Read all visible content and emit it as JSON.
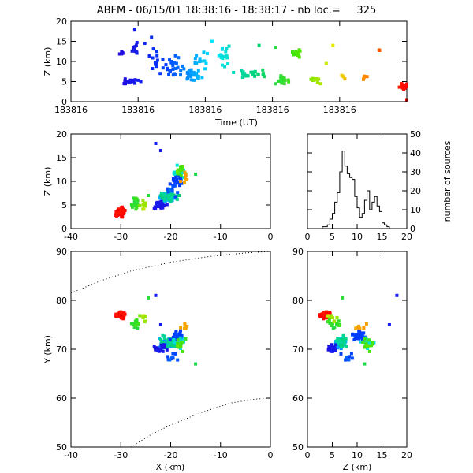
{
  "title": "ABFM - 06/15/01 18:38:16 - 18:38:17 - nb loc.=     325",
  "chart_data": [
    {
      "id": "time-height",
      "type": "scatter",
      "xlabel": "Time (UT)",
      "ylabel": "Z (km)",
      "xlim": [
        0,
        1
      ],
      "ylim": [
        0,
        20
      ],
      "xticks": [
        {
          "v": 0.0,
          "label": "183816"
        },
        {
          "v": 0.2,
          "label": "183816"
        },
        {
          "v": 0.4,
          "label": "183816"
        },
        {
          "v": 0.6,
          "label": "183816"
        },
        {
          "v": 0.8,
          "label": "183816"
        },
        {
          "v": 1.0,
          "label": ""
        }
      ],
      "yticks": [
        0,
        5,
        10,
        15,
        20
      ],
      "clusters": [
        {
          "t": 0.15,
          "z": 12.0,
          "sx": 0.012,
          "sz": 0.4,
          "n": 6
        },
        {
          "t": 0.18,
          "z": 5.0,
          "sx": 0.035,
          "sz": 0.5,
          "n": 22
        },
        {
          "t": 0.19,
          "z": 13.0,
          "sx": 0.012,
          "sz": 2.0,
          "n": 10
        },
        {
          "t": 0.25,
          "z": 10.0,
          "sx": 0.015,
          "sz": 2.5,
          "n": 12
        },
        {
          "t": 0.3,
          "z": 9.0,
          "sx": 0.02,
          "sz": 2.0,
          "n": 25
        },
        {
          "t": 0.36,
          "z": 6.5,
          "sx": 0.03,
          "sz": 1.2,
          "n": 30
        },
        {
          "t": 0.38,
          "z": 10.5,
          "sx": 0.02,
          "sz": 2.0,
          "n": 14
        },
        {
          "t": 0.46,
          "z": 12.0,
          "sx": 0.02,
          "sz": 2.0,
          "n": 16
        },
        {
          "t": 0.53,
          "z": 7.0,
          "sx": 0.035,
          "sz": 0.8,
          "n": 25
        },
        {
          "t": 0.63,
          "z": 5.5,
          "sx": 0.02,
          "sz": 1.0,
          "n": 18
        },
        {
          "t": 0.67,
          "z": 12.0,
          "sx": 0.012,
          "sz": 1.0,
          "n": 12
        },
        {
          "t": 0.73,
          "z": 5.5,
          "sx": 0.015,
          "sz": 0.7,
          "n": 12
        },
        {
          "t": 0.81,
          "z": 6.2,
          "sx": 0.01,
          "sz": 0.4,
          "n": 4
        },
        {
          "t": 0.88,
          "z": 6.0,
          "sx": 0.015,
          "sz": 0.5,
          "n": 5
        },
        {
          "t": 0.92,
          "z": 13.0,
          "sx": 0.004,
          "sz": 0.3,
          "n": 2
        },
        {
          "t": 0.99,
          "z": 3.8,
          "sx": 0.008,
          "sz": 0.7,
          "n": 35
        }
      ],
      "singles": [
        {
          "t": 0.19,
          "z": 18.0
        },
        {
          "t": 0.24,
          "z": 16.0
        },
        {
          "t": 0.22,
          "z": 14.5
        },
        {
          "t": 0.42,
          "z": 15.0
        },
        {
          "t": 0.56,
          "z": 14.0
        },
        {
          "t": 0.61,
          "z": 13.5
        },
        {
          "t": 0.78,
          "z": 14.0
        },
        {
          "t": 0.76,
          "z": 9.5
        },
        {
          "t": 1.0,
          "z": 0.5
        }
      ]
    },
    {
      "id": "x-z",
      "type": "scatter",
      "xlabel": "",
      "ylabel": "Z (km)",
      "xlim": [
        -40,
        0
      ],
      "ylim": [
        0,
        20
      ],
      "xticks": [
        -40,
        -30,
        -20,
        -10,
        0
      ],
      "yticks": [
        0,
        5,
        10,
        15,
        20
      ]
    },
    {
      "id": "histogram",
      "type": "bar",
      "xlabel": "",
      "ylabel": "number of sources",
      "xlim": [
        0,
        20
      ],
      "ylim": [
        0,
        50
      ],
      "xticks": [
        0,
        5,
        10,
        15,
        20
      ],
      "yticks": [
        0,
        10,
        20,
        30,
        40,
        50
      ],
      "bin_width": 0.5,
      "bin_start": 0,
      "values": [
        0,
        0,
        0,
        0,
        0,
        0,
        1,
        1,
        2,
        5,
        8,
        14,
        19,
        30,
        41,
        33,
        29,
        27,
        26,
        17,
        11,
        6,
        8,
        15,
        20,
        10,
        14,
        17,
        12,
        9,
        3,
        2,
        1,
        0,
        0,
        0,
        0,
        0,
        0,
        0
      ]
    },
    {
      "id": "x-y",
      "type": "scatter",
      "xlabel": "X (km)",
      "ylabel": "Y (km)",
      "xlim": [
        -40,
        0
      ],
      "ylim": [
        50,
        90
      ],
      "xticks": [
        -40,
        -30,
        -20,
        -10,
        0
      ],
      "yticks": [
        50,
        60,
        70,
        80,
        90
      ]
    },
    {
      "id": "z-y",
      "type": "scatter",
      "xlabel": "Z (km)",
      "ylabel": "",
      "xlim": [
        0,
        20
      ],
      "ylim": [
        50,
        90
      ],
      "xticks": [
        0,
        5,
        10,
        15,
        20
      ],
      "yticks": [
        50,
        60,
        70,
        80,
        90
      ]
    }
  ],
  "spatial_clusters": [
    {
      "x": -30.0,
      "y": 77.0,
      "z": 3.5,
      "sx": 0.8,
      "sy": 0.7,
      "n": 35,
      "t": 0.99
    },
    {
      "x": -27.0,
      "y": 75.0,
      "z": 5.5,
      "sx": 0.7,
      "sy": 0.8,
      "n": 18,
      "t": 0.63
    },
    {
      "x": -25.5,
      "y": 76.5,
      "z": 5.0,
      "sx": 0.5,
      "sy": 0.6,
      "n": 8,
      "t": 0.73
    },
    {
      "x": -21.0,
      "y": 71.0,
      "z": 6.5,
      "sx": 1.6,
      "sy": 1.0,
      "n": 40,
      "t": 0.36
    },
    {
      "x": -20.5,
      "y": 71.5,
      "z": 7.0,
      "sx": 1.5,
      "sy": 1.0,
      "n": 30,
      "t": 0.53
    },
    {
      "x": -22.0,
      "y": 70.0,
      "z": 5.0,
      "sx": 1.2,
      "sy": 0.8,
      "n": 22,
      "t": 0.18
    },
    {
      "x": -19.0,
      "y": 72.5,
      "z": 10.5,
      "sx": 1.2,
      "sy": 1.0,
      "n": 25,
      "t": 0.28
    },
    {
      "x": -18.0,
      "y": 71.5,
      "z": 12.0,
      "sx": 1.3,
      "sy": 1.0,
      "n": 16,
      "t": 0.46
    },
    {
      "x": -17.5,
      "y": 71.0,
      "z": 12.0,
      "sx": 1.0,
      "sy": 1.0,
      "n": 12,
      "t": 0.67
    },
    {
      "x": -17.5,
      "y": 74.5,
      "z": 11.0,
      "sx": 0.8,
      "sy": 0.6,
      "n": 6,
      "t": 0.85
    },
    {
      "x": -20.0,
      "y": 68.5,
      "z": 8.0,
      "sx": 1.2,
      "sy": 0.8,
      "n": 10,
      "t": 0.3
    }
  ],
  "spatial_singles": [
    {
      "x": -24.5,
      "y": 80.5,
      "z": 7.0,
      "t": 0.62
    },
    {
      "x": -15.0,
      "y": 67.0,
      "z": 11.5,
      "t": 0.6
    },
    {
      "x": -22.0,
      "y": 75.0,
      "z": 16.5,
      "t": 0.19
    },
    {
      "x": -23.0,
      "y": 81.0,
      "z": 18.0,
      "t": 0.2
    }
  ],
  "boundary_arcs": [
    {
      "x": [
        -40,
        -34,
        -28,
        -20,
        -12,
        -5,
        0
      ],
      "y": [
        81.5,
        84.0,
        86.0,
        87.8,
        89.0,
        89.7,
        90.0
      ]
    },
    {
      "x": [
        -28,
        -24,
        -20,
        -14,
        -8,
        -3,
        0
      ],
      "y": [
        50.0,
        52.5,
        54.5,
        57.0,
        59.0,
        59.8,
        60.0
      ]
    }
  ]
}
